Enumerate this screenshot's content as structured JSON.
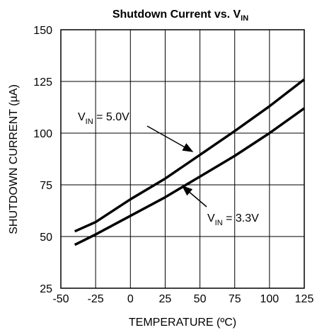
{
  "chart_data": {
    "type": "line",
    "title": "Shutdown Current vs. V",
    "title_sub": "IN",
    "x_label": "TEMPERATURE (ºC)",
    "y_label": "SHUTDOWN CURRENT (µA)",
    "x": [
      -40,
      -25,
      0,
      25,
      50,
      75,
      100,
      125
    ],
    "series": [
      {
        "color": "#000000",
        "values": [
          52.5,
          57,
          68,
          78,
          89.5,
          101,
          113,
          126
        ]
      },
      {
        "color": "#000000",
        "values": [
          46,
          51,
          60,
          69,
          79,
          89,
          100,
          112
        ]
      }
    ],
    "annotations": [
      {
        "text": "V",
        "sub": "IN",
        "rest": " = 5.0V"
      },
      {
        "text": "V",
        "sub": "IN",
        "rest": " = 3.3V"
      }
    ],
    "xlim": [
      -50,
      125
    ],
    "xticks": [
      -50,
      -25,
      0,
      25,
      50,
      75,
      100,
      125
    ],
    "ylim": [
      25,
      150
    ],
    "yticks": [
      25,
      50,
      75,
      100,
      125,
      150
    ],
    "grid": true
  }
}
